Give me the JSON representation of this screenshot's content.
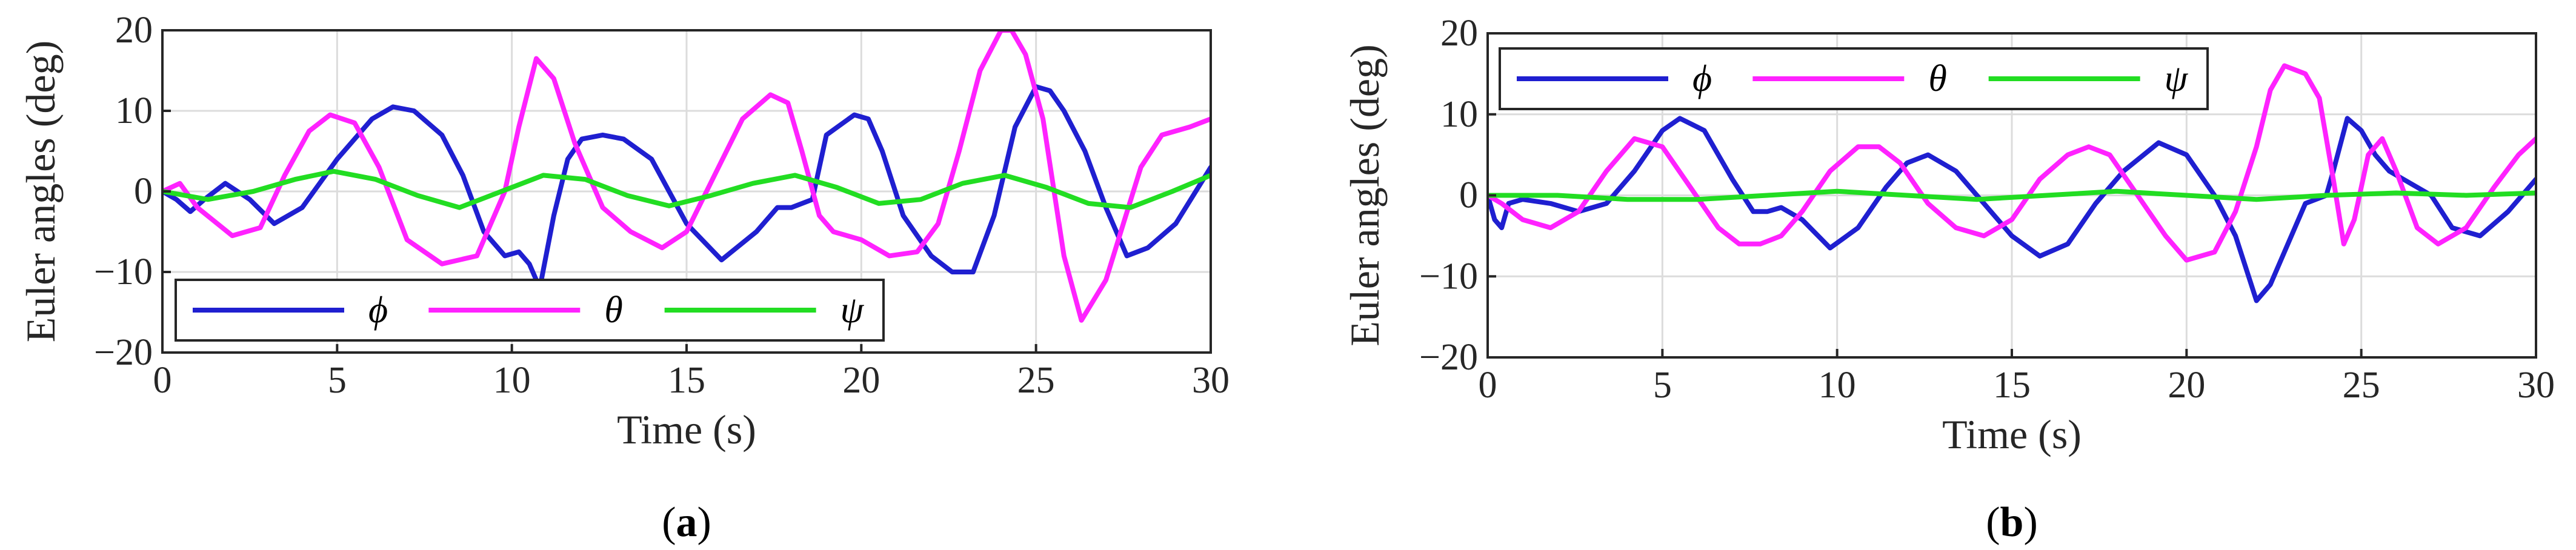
{
  "colors": {
    "phi": "#1f1fd0",
    "theta": "#ff22ff",
    "psi": "#22dd22"
  },
  "chart_data": [
    {
      "type": "line",
      "panel_label": "a",
      "xlabel": "Time (s)",
      "ylabel": "Euler angles (deg)",
      "xlim": [
        0,
        30
      ],
      "ylim": [
        -20,
        20
      ],
      "xticks": [
        0,
        5,
        10,
        15,
        20,
        25,
        30
      ],
      "yticks": [
        -20,
        -10,
        0,
        10,
        20
      ],
      "grid": true,
      "legend_position": "bottom-left",
      "series": [
        {
          "name": "ϕ",
          "color_key": "phi",
          "x": [
            0,
            0.4,
            0.8,
            1.2,
            1.8,
            2.5,
            3.2,
            4,
            5,
            6,
            6.6,
            7.2,
            8,
            8.6,
            9.2,
            9.8,
            10.2,
            10.5,
            10.8,
            11.2,
            11.6,
            12,
            12.6,
            13.2,
            14,
            15,
            16,
            17,
            17.6,
            18,
            18.6,
            19,
            19.8,
            20.2,
            20.6,
            21.2,
            22,
            22.6,
            23.2,
            23.8,
            24.4,
            25,
            25.4,
            25.8,
            26.4,
            27,
            27.6,
            28.2,
            29,
            30
          ],
          "y": [
            0,
            -1,
            -2.5,
            -1,
            1,
            -1,
            -4,
            -2,
            4,
            9,
            10.5,
            10,
            7,
            2,
            -5,
            -8,
            -7.5,
            -9,
            -12,
            -3,
            4,
            6.5,
            7,
            6.5,
            4,
            -4,
            -8.5,
            -5,
            -2,
            -2,
            -1,
            7,
            9.5,
            9,
            5,
            -3,
            -8,
            -10,
            -10,
            -3,
            8,
            13,
            12.5,
            10,
            5,
            -2,
            -8,
            -7,
            -4,
            3
          ]
        },
        {
          "name": "θ",
          "color_key": "theta",
          "x": [
            0,
            0.5,
            1,
            2,
            2.8,
            3.5,
            4.2,
            4.8,
            5.5,
            6.2,
            7,
            8,
            9,
            9.8,
            10.2,
            10.7,
            11.2,
            11.8,
            12.6,
            13.4,
            14.3,
            15,
            15.8,
            16.6,
            17.4,
            17.9,
            18.3,
            18.8,
            19.2,
            20,
            20.8,
            21.6,
            22.2,
            22.8,
            23.4,
            24,
            24.3,
            24.7,
            25.2,
            25.8,
            26.3,
            27,
            27.5,
            28,
            28.6,
            29.4,
            30
          ],
          "y": [
            0,
            1,
            -2,
            -5.5,
            -4.5,
            2,
            7.5,
            9.5,
            8.5,
            3,
            -6,
            -9,
            -8,
            0,
            8,
            16.5,
            14,
            6,
            -2,
            -5,
            -7,
            -5,
            2,
            9,
            12,
            11,
            5,
            -3,
            -5,
            -6,
            -8,
            -7.5,
            -4,
            5,
            15,
            20,
            20,
            17,
            9,
            -8,
            -16,
            -11,
            -4,
            3,
            7,
            8,
            9
          ]
        },
        {
          "name": "ψ",
          "color_key": "psi",
          "x": [
            0,
            1.3,
            2.6,
            3.8,
            4.9,
            6.1,
            7.3,
            8.5,
            9.7,
            10.9,
            12.1,
            13.3,
            14.5,
            15.7,
            16.9,
            18.1,
            19.3,
            20.5,
            21.7,
            22.9,
            24.1,
            25.3,
            26.5,
            27.7,
            28.9,
            30
          ],
          "y": [
            0,
            -1,
            0,
            1.5,
            2.5,
            1.5,
            -0.5,
            -2,
            0,
            2,
            1.5,
            -0.5,
            -1.8,
            -0.5,
            1,
            2,
            0.5,
            -1.5,
            -1,
            1,
            2,
            0.5,
            -1.5,
            -2,
            0,
            2
          ]
        }
      ]
    },
    {
      "type": "line",
      "panel_label": "b",
      "xlabel": "Time (s)",
      "ylabel": "Euler angles (deg)",
      "xlim": [
        0,
        30
      ],
      "ylim": [
        -20,
        20
      ],
      "xticks": [
        0,
        5,
        10,
        15,
        20,
        25,
        30
      ],
      "yticks": [
        -20,
        -10,
        0,
        10,
        20
      ],
      "grid": true,
      "legend_position": "top-left",
      "series": [
        {
          "name": "ϕ",
          "color_key": "phi",
          "x": [
            0,
            0.2,
            0.4,
            0.6,
            1,
            1.8,
            2.6,
            3.4,
            4.2,
            5,
            5.5,
            6.2,
            7,
            7.6,
            8,
            8.4,
            9,
            9.8,
            10.6,
            11.4,
            12,
            12.6,
            13.4,
            14.2,
            15,
            15.8,
            16.6,
            17.4,
            18.2,
            19.2,
            20,
            20.8,
            21.4,
            22,
            22.4,
            22.8,
            23.4,
            24,
            24.2,
            24.6,
            25,
            25.4,
            25.8,
            26.2,
            27,
            27.6,
            28.4,
            29.2,
            30
          ],
          "y": [
            0,
            -3,
            -4,
            -1,
            -0.5,
            -1,
            -2,
            -1,
            3,
            8,
            9.5,
            8,
            2,
            -2,
            -2,
            -1.5,
            -3,
            -6.5,
            -4,
            1,
            4,
            5,
            3,
            -1,
            -5,
            -7.5,
            -6,
            -1,
            3,
            6.5,
            5,
            0,
            -5,
            -13,
            -11,
            -7,
            -1,
            0,
            3,
            9.5,
            8,
            5,
            3,
            2,
            0,
            -4,
            -5,
            -2,
            2
          ]
        },
        {
          "name": "θ",
          "color_key": "theta",
          "x": [
            0,
            0.4,
            1,
            1.8,
            2.6,
            3.4,
            4.2,
            5,
            5.8,
            6.6,
            7.2,
            7.8,
            8.4,
            9,
            9.8,
            10.6,
            11.2,
            11.8,
            12.6,
            13.4,
            14.2,
            15,
            15.8,
            16.6,
            17.2,
            17.8,
            18.6,
            19.4,
            20,
            20.8,
            21.4,
            22,
            22.4,
            22.8,
            23.4,
            23.8,
            24.2,
            24.5,
            24.8,
            25.2,
            25.6,
            26,
            26.6,
            27.2,
            28,
            28.8,
            29.5,
            30
          ],
          "y": [
            0,
            -1,
            -3,
            -4,
            -2,
            3,
            7,
            6,
            1,
            -4,
            -6,
            -6,
            -5,
            -2,
            3,
            6,
            6,
            4,
            -1,
            -4,
            -5,
            -3,
            2,
            5,
            6,
            5,
            0,
            -5,
            -8,
            -7,
            -2,
            6,
            13,
            16,
            15,
            12,
            2,
            -6,
            -3,
            5,
            7,
            3,
            -4,
            -6,
            -4,
            1,
            5,
            7
          ]
        },
        {
          "name": "ψ",
          "color_key": "psi",
          "x": [
            0,
            2,
            4,
            6,
            8,
            10,
            12,
            14,
            16,
            18,
            20,
            22,
            24,
            26,
            28,
            30
          ],
          "y": [
            0,
            0,
            -0.5,
            -0.5,
            0,
            0.5,
            0,
            -0.5,
            0,
            0.5,
            0,
            -0.5,
            0,
            0.3,
            0,
            0.3
          ]
        }
      ]
    }
  ]
}
